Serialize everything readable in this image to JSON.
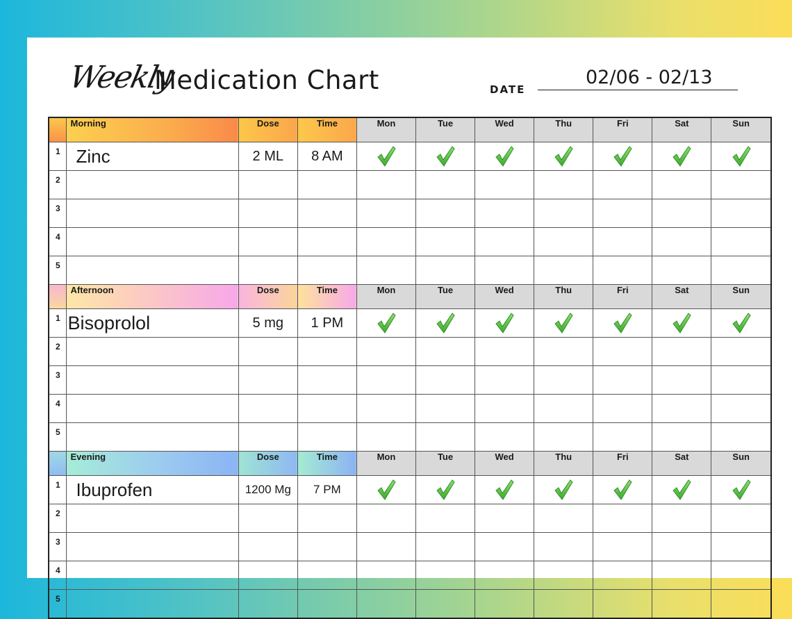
{
  "header": {
    "title_script": "Weekly",
    "title_main": "Medication Chart",
    "date_label": "DATE",
    "date_value": "02/06 - 02/13"
  },
  "columns": {
    "dose": "Dose",
    "time": "Time",
    "days": [
      "Mon",
      "Tue",
      "Wed",
      "Thu",
      "Fri",
      "Sat",
      "Sun"
    ]
  },
  "sections": [
    {
      "name": "Morning",
      "rows": [
        {
          "num": "1",
          "medication": "Zinc",
          "dose": "2 ML",
          "time": "8 AM",
          "taken": [
            true,
            true,
            true,
            true,
            true,
            true,
            true
          ]
        },
        {
          "num": "2",
          "medication": "",
          "dose": "",
          "time": "",
          "taken": [
            false,
            false,
            false,
            false,
            false,
            false,
            false
          ]
        },
        {
          "num": "3",
          "medication": "",
          "dose": "",
          "time": "",
          "taken": [
            false,
            false,
            false,
            false,
            false,
            false,
            false
          ]
        },
        {
          "num": "4",
          "medication": "",
          "dose": "",
          "time": "",
          "taken": [
            false,
            false,
            false,
            false,
            false,
            false,
            false
          ]
        },
        {
          "num": "5",
          "medication": "",
          "dose": "",
          "time": "",
          "taken": [
            false,
            false,
            false,
            false,
            false,
            false,
            false
          ]
        }
      ]
    },
    {
      "name": "Afternoon",
      "rows": [
        {
          "num": "1",
          "medication": "Bisoprolol",
          "dose": "5 mg",
          "time": "1 PM",
          "taken": [
            true,
            true,
            true,
            true,
            true,
            true,
            true
          ]
        },
        {
          "num": "2",
          "medication": "",
          "dose": "",
          "time": "",
          "taken": [
            false,
            false,
            false,
            false,
            false,
            false,
            false
          ]
        },
        {
          "num": "3",
          "medication": "",
          "dose": "",
          "time": "",
          "taken": [
            false,
            false,
            false,
            false,
            false,
            false,
            false
          ]
        },
        {
          "num": "4",
          "medication": "",
          "dose": "",
          "time": "",
          "taken": [
            false,
            false,
            false,
            false,
            false,
            false,
            false
          ]
        },
        {
          "num": "5",
          "medication": "",
          "dose": "",
          "time": "",
          "taken": [
            false,
            false,
            false,
            false,
            false,
            false,
            false
          ]
        }
      ]
    },
    {
      "name": "Evening",
      "rows": [
        {
          "num": "1",
          "medication": "Ibuprofen",
          "dose": "1200 Mg",
          "time": "7 PM",
          "taken": [
            true,
            true,
            true,
            true,
            true,
            true,
            true
          ]
        },
        {
          "num": "2",
          "medication": "",
          "dose": "",
          "time": "",
          "taken": [
            false,
            false,
            false,
            false,
            false,
            false,
            false
          ]
        },
        {
          "num": "3",
          "medication": "",
          "dose": "",
          "time": "",
          "taken": [
            false,
            false,
            false,
            false,
            false,
            false,
            false
          ]
        },
        {
          "num": "4",
          "medication": "",
          "dose": "",
          "time": "",
          "taken": [
            false,
            false,
            false,
            false,
            false,
            false,
            false
          ]
        },
        {
          "num": "5",
          "medication": "",
          "dose": "",
          "time": "",
          "taken": [
            false,
            false,
            false,
            false,
            false,
            false,
            false
          ]
        }
      ]
    }
  ],
  "icons": {
    "checkmark": "checkmark-icon"
  },
  "colors": {
    "check_green": "#5cc23b",
    "check_dark": "#2e8f26",
    "day_header_gray": "#d9d9d9"
  }
}
